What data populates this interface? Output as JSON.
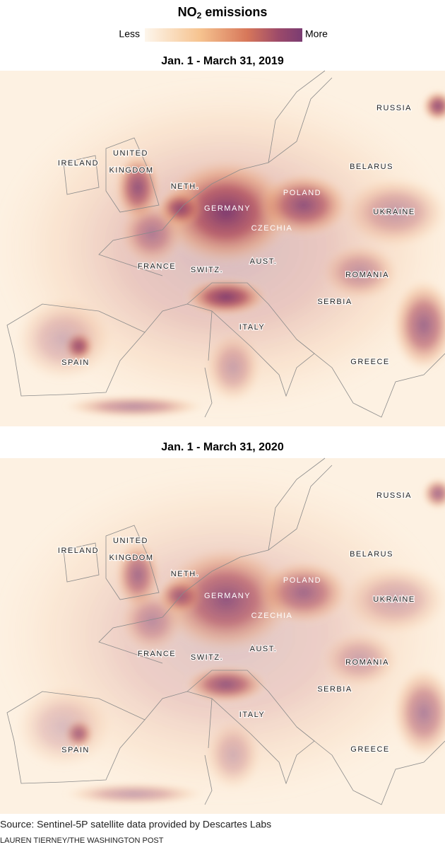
{
  "header": {
    "title": {
      "chemical": "NO",
      "subscript": "2",
      "rest": "emissions"
    },
    "legend": {
      "low": "Less",
      "high": "More"
    }
  },
  "maps": [
    {
      "title": "Jan. 1 - March 31, 2019",
      "labels": [
        "IRELAND",
        "UNITED",
        "KINGDOM",
        "NETH.",
        "GERMANY",
        "POLAND",
        "CZECHIA",
        "FRANCE",
        "SWITZ.",
        "AUST.",
        "RUSSIA",
        "BELARUS",
        "UKRAINE",
        "ROMANIA",
        "SERBIA",
        "ITALY",
        "SPAIN",
        "GREECE"
      ]
    },
    {
      "title": "Jan. 1 - March 31, 2020",
      "labels": [
        "IRELAND",
        "UNITED",
        "KINGDOM",
        "NETH.",
        "GERMANY",
        "POLAND",
        "CZECHIA",
        "FRANCE",
        "SWITZ.",
        "AUST.",
        "RUSSIA",
        "BELARUS",
        "UKRAINE",
        "ROMANIA",
        "SERBIA",
        "ITALY",
        "SPAIN",
        "GREECE"
      ]
    }
  ],
  "footer": {
    "source": "Source: Sentinel-5P satellite data provided by Descartes Labs",
    "credit": "LAUREN TIERNEY/THE WASHINGTON POST"
  }
}
